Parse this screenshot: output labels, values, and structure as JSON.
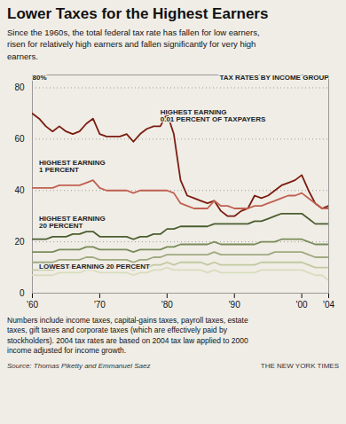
{
  "chart_data": {
    "type": "line",
    "title": "Lower Taxes for the Highest Earners",
    "subtitle": "Since the 1960s, the total federal tax rate has fallen for low earners,\nrisen for relatively high earners and fallen significantly for very high\nearners.",
    "footnote": "Numbers include income taxes, capital-gains taxes, payroll taxes, estate\ntaxes, gift taxes and corporate taxes (which are effectively paid by\nstockholders). 2004 tax rates are based on 2004 tax law applied to 2000\nincome adjusted for income growth.",
    "source": "Source: Thomas Piketty and Emmanuel Saez",
    "publisher": "THE NEW YORK TIMES",
    "x": [
      1960,
      1961,
      1962,
      1963,
      1964,
      1965,
      1966,
      1967,
      1968,
      1969,
      1970,
      1971,
      1972,
      1973,
      1974,
      1975,
      1976,
      1977,
      1978,
      1979,
      1980,
      1981,
      1982,
      1983,
      1984,
      1985,
      1986,
      1987,
      1988,
      1989,
      1990,
      1991,
      1992,
      1993,
      1994,
      1995,
      1996,
      1997,
      1998,
      1999,
      2000,
      2001,
      2002,
      2003,
      2004
    ],
    "series": [
      {
        "color": "#7B1C10",
        "values": [
          70,
          68,
          65,
          63,
          65,
          63,
          62,
          63,
          66,
          68,
          62,
          61,
          61,
          61,
          62,
          59,
          62,
          64,
          65,
          65,
          70,
          62,
          44,
          38,
          37,
          36,
          35,
          36,
          32,
          30,
          30,
          32,
          33,
          38,
          37,
          38,
          40,
          42,
          43,
          44,
          46,
          40,
          35,
          33,
          34
        ]
      },
      {
        "color": "#C06050",
        "values": [
          41,
          41,
          41,
          41,
          42,
          42,
          42,
          42,
          43,
          44,
          41,
          40,
          40,
          40,
          40,
          39,
          40,
          40,
          40,
          40,
          40,
          39,
          35,
          34,
          33,
          33,
          33,
          36,
          34,
          34,
          33,
          33,
          33,
          34,
          34,
          35,
          36,
          37,
          38,
          38,
          39,
          37,
          35,
          33,
          33
        ]
      },
      {
        "color": "#4A5E30",
        "values": [
          21,
          21,
          21,
          22,
          22,
          22,
          23,
          23,
          24,
          24,
          22,
          22,
          22,
          22,
          22,
          21,
          22,
          22,
          23,
          23,
          25,
          25,
          26,
          26,
          26,
          26,
          26,
          27,
          27,
          27,
          27,
          27,
          27,
          28,
          28,
          29,
          30,
          31,
          31,
          31,
          31,
          29,
          27,
          27,
          27
        ]
      },
      {
        "color": "#7A8C5A",
        "values": [
          16,
          16,
          16,
          16,
          17,
          17,
          17,
          17,
          18,
          18,
          17,
          17,
          17,
          17,
          17,
          16,
          17,
          17,
          17,
          17,
          18,
          18,
          19,
          19,
          19,
          19,
          19,
          20,
          19,
          19,
          19,
          19,
          19,
          19,
          20,
          20,
          20,
          21,
          21,
          21,
          21,
          20,
          19,
          19,
          19
        ]
      },
      {
        "color": "#A0AA80",
        "values": [
          12,
          12,
          12,
          12,
          13,
          13,
          13,
          13,
          14,
          14,
          13,
          13,
          13,
          13,
          13,
          12,
          13,
          13,
          14,
          14,
          15,
          15,
          15,
          15,
          15,
          15,
          15,
          16,
          15,
          15,
          15,
          15,
          15,
          15,
          15,
          15,
          16,
          16,
          16,
          16,
          16,
          15,
          14,
          14,
          14
        ]
      },
      {
        "color": "#C2C9A0",
        "values": [
          9,
          9,
          9,
          9,
          10,
          10,
          10,
          10,
          11,
          11,
          10,
          10,
          10,
          10,
          10,
          9,
          10,
          10,
          11,
          11,
          12,
          11,
          12,
          12,
          12,
          12,
          11,
          12,
          11,
          11,
          11,
          11,
          11,
          11,
          12,
          12,
          12,
          12,
          12,
          12,
          12,
          11,
          10,
          10,
          10
        ]
      },
      {
        "color": "#D8DDBE",
        "values": [
          7,
          7,
          7,
          7,
          8,
          8,
          8,
          8,
          9,
          9,
          8,
          8,
          8,
          8,
          8,
          7,
          8,
          8,
          9,
          9,
          10,
          9,
          9,
          9,
          9,
          9,
          8,
          9,
          8,
          8,
          8,
          8,
          8,
          8,
          9,
          9,
          9,
          9,
          9,
          9,
          9,
          8,
          7,
          7,
          5
        ]
      }
    ],
    "xlim": [
      1960,
      2004
    ],
    "xticks": [
      {
        "value": 1960,
        "label": "'60"
      },
      {
        "value": 1970,
        "label": "'70"
      },
      {
        "value": 1980,
        "label": "'80"
      },
      {
        "value": 1990,
        "label": "'90"
      },
      {
        "value": 2000,
        "label": "'00"
      },
      {
        "value": 2004,
        "label": "'04"
      }
    ],
    "ylim": [
      0,
      85
    ],
    "yticks": [
      0,
      20,
      40,
      60,
      80
    ],
    "grid": true,
    "annotations": [
      {
        "text": "80%",
        "x": 1960,
        "y": 83
      },
      {
        "text": "TAX RATES BY INCOME GROUP",
        "x": 2004,
        "y": 83
      },
      {
        "text": "HIGHEST EARNING\n0.01 PERCENT OF TAXPAYERS",
        "x": 1979,
        "y": 67
      },
      {
        "text": "HIGHEST EARNING\n1 PERCENT",
        "x": 1961,
        "y": 47
      },
      {
        "text": "HIGHEST EARNING\n20 PERCENT",
        "x": 1961,
        "y": 25.5
      },
      {
        "text": "LOWEST EARNING 20 PERCENT",
        "x": 1961,
        "y": 9.5
      }
    ]
  }
}
